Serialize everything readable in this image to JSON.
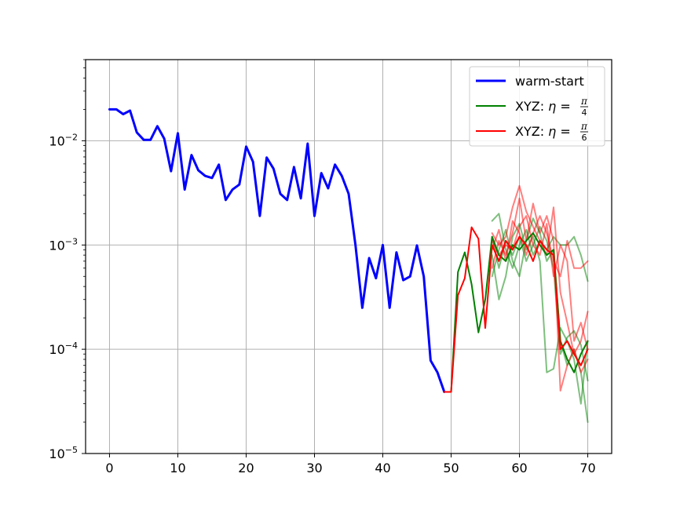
{
  "chart_data": {
    "type": "line",
    "title": "",
    "xlabel": "",
    "ylabel": "",
    "xlim": [
      -3.5,
      73.5
    ],
    "ylim": [
      1e-05,
      0.06
    ],
    "yscale": "log",
    "grid": true,
    "legend_position": "top-right",
    "x_ticks": [
      0,
      10,
      20,
      30,
      40,
      50,
      60,
      70
    ],
    "x_tick_labels": [
      "0",
      "10",
      "20",
      "30",
      "40",
      "50",
      "60",
      "70"
    ],
    "y_ticks": [
      1e-05,
      0.0001,
      0.001,
      0.01
    ],
    "y_tick_labels": [
      {
        "base": "10",
        "exp": "−5"
      },
      {
        "base": "10",
        "exp": "−4"
      },
      {
        "base": "10",
        "exp": "−3"
      },
      {
        "base": "10",
        "exp": "−2"
      }
    ],
    "legend": [
      {
        "label": "warm-start",
        "color": "#0000ff",
        "mathlabel": false
      },
      {
        "label": "XYZ: ",
        "eta": "η",
        "eq": " = ",
        "frac_num": "π",
        "frac_den": "4",
        "color": "#008000",
        "mathlabel": true
      },
      {
        "label": "XYZ: ",
        "eta": "η",
        "eq": " = ",
        "frac_num": "π",
        "frac_den": "6",
        "color": "#ff0000",
        "mathlabel": true
      }
    ],
    "series": [
      {
        "name": "warm-start",
        "color": "#0000ff",
        "width": 3,
        "opacity": 1,
        "x": [
          0,
          1,
          2,
          3,
          4,
          5,
          6,
          7,
          8,
          9,
          10,
          11,
          12,
          13,
          14,
          15,
          16,
          17,
          18,
          19,
          20,
          21,
          22,
          23,
          24,
          25,
          26,
          27,
          28,
          29,
          30,
          31,
          32,
          33,
          34,
          35,
          36,
          37,
          38,
          39,
          40,
          41,
          42,
          43,
          44,
          45,
          46,
          47,
          48,
          49
        ],
        "y": [
          0.02,
          0.02,
          0.018,
          0.0195,
          0.012,
          0.0102,
          0.0102,
          0.0138,
          0.0105,
          0.0051,
          0.0118,
          0.0034,
          0.0073,
          0.0052,
          0.0046,
          0.0044,
          0.0059,
          0.0027,
          0.0034,
          0.0038,
          0.0088,
          0.0063,
          0.0019,
          0.0069,
          0.0054,
          0.0031,
          0.0027,
          0.0056,
          0.0028,
          0.0094,
          0.0019,
          0.0049,
          0.0035,
          0.0059,
          0.0046,
          0.0031,
          0.001,
          0.00025,
          0.00075,
          0.00048,
          0.001,
          0.00025,
          0.00085,
          0.00046,
          0.0005,
          0.00099,
          0.0005,
          7.8e-05,
          6e-05,
          3.9e-05
        ]
      },
      {
        "name": "XYZ: η = π/4",
        "color": "#008000",
        "width": 2,
        "opacity": 1,
        "x": [
          49,
          50,
          51,
          52,
          53,
          54,
          55,
          56,
          57,
          58,
          59,
          60,
          61,
          62,
          63,
          64,
          65,
          66,
          67,
          68,
          69,
          70
        ],
        "y": [
          3.9e-05,
          3.9e-05,
          0.00055,
          0.00085,
          0.00042,
          0.000145,
          0.0003,
          0.0012,
          0.0008,
          0.0007,
          0.001,
          0.0009,
          0.0011,
          0.0013,
          0.001,
          0.0008,
          0.0009,
          0.00012,
          8e-05,
          6e-05,
          9e-05,
          0.00012
        ]
      },
      {
        "name": "XYZ: η = π/6",
        "color": "#ff0000",
        "width": 2,
        "opacity": 1,
        "x": [
          49,
          50,
          51,
          52,
          53,
          54,
          55,
          56,
          57,
          58,
          59,
          60,
          61,
          62,
          63,
          64,
          65,
          66,
          67,
          68,
          69,
          70
        ],
        "y": [
          3.9e-05,
          3.9e-05,
          0.00033,
          0.00048,
          0.00148,
          0.00115,
          0.00016,
          0.001,
          0.0007,
          0.0011,
          0.0009,
          0.0012,
          0.001,
          0.0007,
          0.0011,
          0.0009,
          0.0008,
          0.0001,
          0.00012,
          9e-05,
          7e-05,
          0.0001
        ]
      },
      {
        "color": "#008000",
        "width": 2,
        "opacity": 0.5,
        "x": [
          56,
          57,
          58,
          59,
          60,
          61,
          62,
          63,
          64,
          65,
          66,
          67,
          68,
          69,
          70
        ],
        "y": [
          0.0017,
          0.002,
          0.0009,
          0.0006,
          0.001,
          0.0014,
          0.0008,
          0.0011,
          0.0009,
          0.0012,
          0.001,
          0.001,
          0.0012,
          0.0008,
          0.00045
        ]
      },
      {
        "color": "#008000",
        "width": 2,
        "opacity": 0.5,
        "x": [
          56,
          57,
          58,
          59,
          60,
          61,
          62,
          63,
          64,
          65,
          66,
          67,
          68,
          69,
          70
        ],
        "y": [
          0.0008,
          0.0003,
          0.0005,
          0.0012,
          0.0016,
          0.0009,
          0.0012,
          0.0007,
          6e-05,
          6.5e-05,
          0.00016,
          0.00012,
          8e-05,
          3e-05,
          0.00012
        ]
      },
      {
        "color": "#008000",
        "width": 2,
        "opacity": 0.5,
        "x": [
          56,
          57,
          58,
          59,
          60,
          61,
          62,
          63,
          64,
          65,
          66,
          67,
          68,
          69,
          70
        ],
        "y": [
          0.0005,
          0.0009,
          0.0014,
          0.0007,
          0.0005,
          0.0011,
          0.0018,
          0.0013,
          0.0007,
          0.0009,
          0.00012,
          7e-05,
          0.0001,
          6e-05,
          2e-05
        ]
      },
      {
        "color": "#008000",
        "width": 2,
        "opacity": 0.5,
        "x": [
          56,
          57,
          58,
          59,
          60,
          61,
          62,
          63,
          64,
          65,
          66,
          67,
          68,
          69,
          70
        ],
        "y": [
          0.0012,
          0.0006,
          0.0011,
          0.0008,
          0.0012,
          0.0007,
          0.001,
          0.0015,
          0.0011,
          0.0006,
          9e-05,
          0.00013,
          0.00015,
          0.00011,
          5e-05
        ]
      },
      {
        "color": "#ff0000",
        "width": 2,
        "opacity": 0.5,
        "x": [
          56,
          57,
          58,
          59,
          60,
          61,
          62,
          63,
          64,
          65,
          66,
          67,
          68,
          69,
          70
        ],
        "y": [
          0.0013,
          0.001,
          0.0012,
          0.0023,
          0.0037,
          0.0021,
          0.0015,
          0.0011,
          0.0008,
          0.0023,
          0.00035,
          0.00018,
          9e-05,
          0.00012,
          0.00023
        ]
      },
      {
        "color": "#ff0000",
        "width": 2,
        "opacity": 0.5,
        "x": [
          56,
          57,
          58,
          59,
          60,
          61,
          62,
          63,
          64,
          65,
          66,
          67,
          68,
          69,
          70
        ],
        "y": [
          0.0006,
          0.0011,
          0.0008,
          0.0013,
          0.0028,
          0.0011,
          0.0025,
          0.0013,
          0.0019,
          0.0011,
          4e-05,
          7e-05,
          0.0001,
          6e-05,
          8e-05
        ]
      },
      {
        "color": "#ff0000",
        "width": 2,
        "opacity": 0.5,
        "x": [
          56,
          57,
          58,
          59,
          60,
          61,
          62,
          63,
          64,
          65,
          66,
          67,
          68,
          69,
          70
        ],
        "y": [
          0.0009,
          0.0014,
          0.0007,
          0.0017,
          0.0013,
          0.0008,
          0.0013,
          0.0019,
          0.0013,
          0.0007,
          0.0005,
          0.0011,
          0.0006,
          0.0006,
          0.0007
        ]
      },
      {
        "color": "#ff0000",
        "width": 2,
        "opacity": 0.5,
        "x": [
          56,
          57,
          58,
          59,
          60,
          61,
          62,
          63,
          64,
          65,
          66,
          67,
          68,
          69,
          70
        ],
        "y": [
          0.0011,
          0.0008,
          0.001,
          0.0009,
          0.0015,
          0.0019,
          0.001,
          0.0008,
          0.0016,
          0.0005,
          0.001,
          0.0007,
          0.00012,
          0.00018,
          0.0001
        ]
      }
    ]
  }
}
